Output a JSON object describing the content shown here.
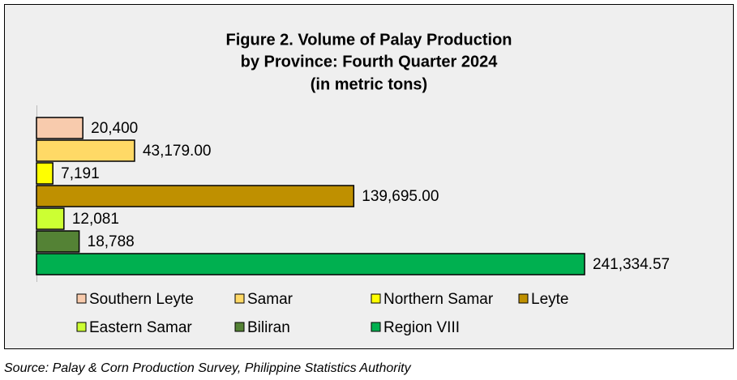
{
  "chart_data": {
    "type": "bar",
    "orientation": "horizontal",
    "title": [
      "Figure 2. Volume of Palay Production",
      "by Province: Fourth Quarter 2024"
    ],
    "subtitle": "(in metric tons)",
    "series": [
      {
        "name": "Southern Leyte",
        "color": "#f8cbad",
        "values": [
          20400
        ],
        "value_labels": [
          "20,400"
        ]
      },
      {
        "name": "Samar",
        "color": "#ffd966",
        "values": [
          43179.0
        ],
        "value_labels": [
          "43,179.00"
        ]
      },
      {
        "name": "Northern Samar",
        "color": "#ffff00",
        "values": [
          7191
        ],
        "value_labels": [
          "7,191"
        ]
      },
      {
        "name": "Leyte",
        "color": "#bf9000",
        "values": [
          139695.0
        ],
        "value_labels": [
          "139,695.00"
        ]
      },
      {
        "name": "Eastern Samar",
        "color": "#ccff33",
        "values": [
          12081
        ],
        "value_labels": [
          "12,081"
        ]
      },
      {
        "name": "Biliran",
        "color": "#548235",
        "values": [
          18788
        ],
        "value_labels": [
          "18,788"
        ]
      },
      {
        "name": "Region VIII",
        "color": "#00b050",
        "values": [
          241334.57
        ],
        "value_labels": [
          "241,334.57"
        ]
      }
    ]
  },
  "source": "Source: Palay & Corn Production Survey, Philippine Statistics Authority"
}
